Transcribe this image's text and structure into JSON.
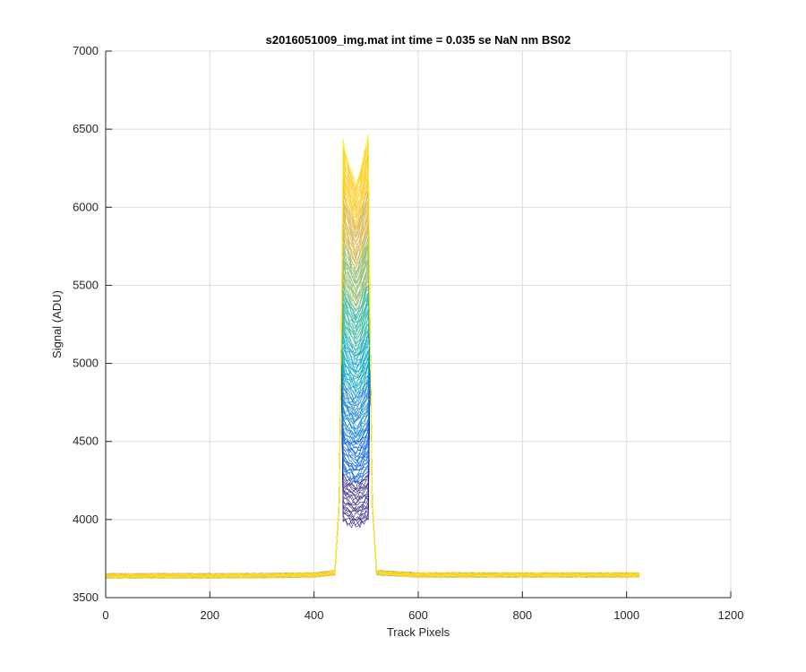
{
  "chart_data": {
    "type": "line",
    "title": "s2016051009_img.mat int time = 0.035 se  NaN nm BS02",
    "xlabel": "Track Pixels",
    "ylabel": "Signal (ADU)",
    "xlim": [
      0,
      1200
    ],
    "ylim": [
      3500,
      7000
    ],
    "xticks": [
      0,
      200,
      400,
      600,
      800,
      1000,
      1200
    ],
    "xtick_labels": [
      "0",
      "200",
      "400",
      "600",
      "800",
      "1000",
      "1200"
    ],
    "yticks": [
      3500,
      4000,
      4500,
      5000,
      5500,
      6000,
      6500,
      7000
    ],
    "ytick_labels": [
      "3500",
      "4000",
      "4500",
      "5000",
      "5500",
      "6000",
      "6500",
      "7000"
    ],
    "grid": true,
    "legend": "none",
    "colormap": [
      "#352a87",
      "#0363e1",
      "#1485d4",
      "#06a7c6",
      "#38b99e",
      "#92bf73",
      "#d9ba56",
      "#fcce2e",
      "#f9fb0e"
    ],
    "series_count": 200,
    "description_of_series": "many overlaid tracks, baseline ~3640 ADU across pixels 0-1024, peak between pixels ~450-510 rising to ~6450-6500",
    "x": [
      0,
      100,
      200,
      300,
      400,
      440,
      450,
      455,
      460,
      470,
      480,
      490,
      500,
      505,
      510,
      520,
      600,
      700,
      800,
      900,
      1000,
      1024
    ],
    "series": [
      {
        "values": [
          3640,
          3640,
          3640,
          3641,
          3645,
          3660,
          4200,
          6450,
          6350,
          6250,
          6150,
          6250,
          6400,
          6480,
          4200,
          3660,
          3645,
          3645,
          3645,
          3645,
          3645,
          3645
        ]
      }
    ]
  }
}
